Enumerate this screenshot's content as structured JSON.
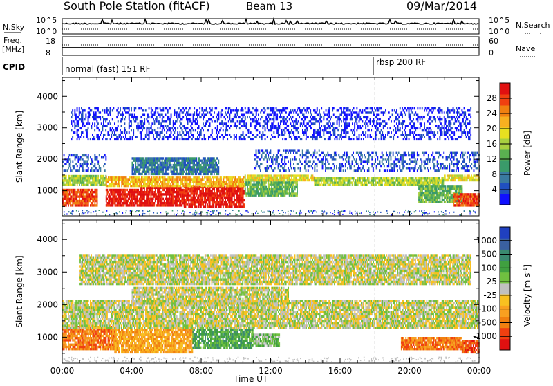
{
  "header": {
    "station": "South Pole Station (fitACF)",
    "beam": "Beam 13",
    "date": "09/Mar/2014"
  },
  "summary": {
    "nsky_label": "N.Sky",
    "nsky_ticks": [
      "10^5",
      "10^0"
    ],
    "nsearch_label": "N.Search",
    "nsearch_ticks": [
      "10^5",
      "10^0"
    ],
    "freq_label": "Freq.",
    "freq_unit": "[MHz]",
    "freq_ticks": [
      "18",
      "8"
    ],
    "nave_label": "Nave",
    "nave_ticks": [
      "60",
      "0"
    ],
    "cpid_label": "CPID",
    "cpid_segments": [
      {
        "label": "normal (fast) 151 RF",
        "start_hour": 0
      },
      {
        "label": "rbsp 200 RF",
        "start_hour": 18
      }
    ]
  },
  "chart_data": [
    {
      "type": "heatmap",
      "name": "power",
      "ylabel": "Slant Range [km]",
      "xlabel": "Time UT",
      "xlim": [
        0,
        24
      ],
      "ylim": [
        200,
        4600
      ],
      "yticks": [
        1000,
        2000,
        3000,
        4000
      ],
      "xticks": [
        "00:00",
        "04:00",
        "08:00",
        "12:00",
        "16:00",
        "20:00",
        "00:00"
      ],
      "colorbar": {
        "label": "Power [dB]",
        "ticks": [
          "4",
          "8",
          "12",
          "16",
          "20",
          "24",
          "28"
        ],
        "colors": [
          "#1010ff",
          "#2050c0",
          "#3a7aa0",
          "#3a9a6a",
          "#5ab050",
          "#a8d040",
          "#e8e020",
          "#f8b020",
          "#f08010",
          "#f04010",
          "#e01010"
        ]
      },
      "bands": [
        {
          "t0": 0.0,
          "t1": 2.5,
          "r0": 1150,
          "r1": 1500,
          "level": 5
        },
        {
          "t0": 0.0,
          "t1": 2.5,
          "r0": 1600,
          "r1": 2100,
          "level": 1
        },
        {
          "t0": 0.0,
          "t1": 2.0,
          "r0": 500,
          "r1": 1000,
          "level": 9
        },
        {
          "t0": 2.5,
          "t1": 4.5,
          "r0": 500,
          "r1": 1000,
          "level": 10
        },
        {
          "t0": 4.5,
          "t1": 7.0,
          "r0": 500,
          "r1": 1100,
          "level": 10
        },
        {
          "t0": 7.0,
          "t1": 10.5,
          "r0": 450,
          "r1": 1150,
          "level": 10
        },
        {
          "t0": 2.5,
          "t1": 10.5,
          "r0": 1100,
          "r1": 1450,
          "level": 7
        },
        {
          "t0": 4.0,
          "t1": 9.0,
          "r0": 1500,
          "r1": 2000,
          "level": 2
        },
        {
          "t0": 10.5,
          "t1": 13.5,
          "r0": 800,
          "r1": 1300,
          "level": 4
        },
        {
          "t0": 10.5,
          "t1": 14.5,
          "r0": 1300,
          "r1": 1500,
          "level": 6
        },
        {
          "t0": 11.0,
          "t1": 15.0,
          "r0": 1600,
          "r1": 2300,
          "level": 1
        },
        {
          "t0": 14.5,
          "t1": 22.0,
          "r0": 1150,
          "r1": 1400,
          "level": 5
        },
        {
          "t0": 15.0,
          "t1": 24.0,
          "r0": 1600,
          "r1": 2200,
          "level": 1
        },
        {
          "t0": 20.5,
          "t1": 23.0,
          "r0": 600,
          "r1": 1100,
          "level": 4
        },
        {
          "t0": 22.5,
          "t1": 24.0,
          "r0": 500,
          "r1": 900,
          "level": 9
        },
        {
          "t0": 22.0,
          "t1": 24.0,
          "r0": 1300,
          "r1": 1500,
          "level": 6
        },
        {
          "t0": 0.5,
          "t1": 23.5,
          "r0": 2600,
          "r1": 3600,
          "level": 0
        }
      ]
    },
    {
      "type": "heatmap",
      "name": "velocity",
      "ylabel": "Slant Range [km]",
      "xlabel": "Time UT",
      "xlim": [
        0,
        24
      ],
      "ylim": [
        200,
        4600
      ],
      "yticks": [
        1000,
        2000,
        3000,
        4000
      ],
      "xticks": [
        "00:00",
        "04:00",
        "08:00",
        "12:00",
        "16:00",
        "20:00",
        "00:00"
      ],
      "colorbar": {
        "label": "Velocity [m s^-1]",
        "ticks": [
          "1000",
          "500",
          "100",
          "25",
          "-25",
          "-100",
          "-500",
          "-1000"
        ],
        "colors": [
          "#2040c0",
          "#3a60a0",
          "#3a8a70",
          "#40a040",
          "#70c040",
          "#c0c0c0",
          "#f8c020",
          "#f8a020",
          "#f08010",
          "#f04010",
          "#e01010"
        ]
      },
      "bands": [
        {
          "t0": 0.0,
          "t1": 3.0,
          "r0": 600,
          "r1": 1300,
          "level": 8
        },
        {
          "t0": 3.0,
          "t1": 7.5,
          "r0": 500,
          "r1": 1200,
          "level": 7
        },
        {
          "t0": 7.5,
          "t1": 11.0,
          "r0": 650,
          "r1": 1250,
          "level": 3
        },
        {
          "t0": 11.0,
          "t1": 12.5,
          "r0": 700,
          "r1": 1100,
          "level": 4
        },
        {
          "t0": 0.0,
          "t1": 24.0,
          "r0": 1250,
          "r1": 1550,
          "level": 5
        },
        {
          "t0": 0.0,
          "t1": 24.0,
          "r0": 1600,
          "r1": 2100,
          "level": 5
        },
        {
          "t0": 4.0,
          "t1": 13.0,
          "r0": 2000,
          "r1": 2500,
          "level": 5
        },
        {
          "t0": 19.5,
          "t1": 23.0,
          "r0": 600,
          "r1": 1000,
          "level": 8
        },
        {
          "t0": 23.0,
          "t1": 24.0,
          "r0": 500,
          "r1": 900,
          "level": 9
        },
        {
          "t0": 1.0,
          "t1": 23.5,
          "r0": 2600,
          "r1": 3500,
          "level": 5
        }
      ]
    }
  ]
}
